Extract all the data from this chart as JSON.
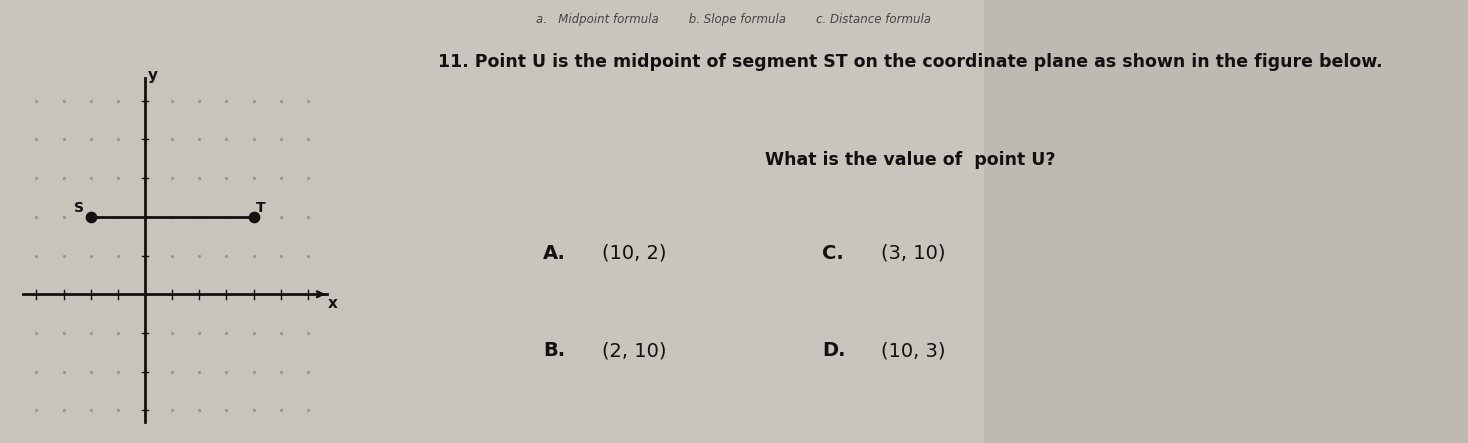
{
  "bg_left": "#c8c4bc",
  "bg_right": "#d4d0ca",
  "bg_right2": "#b8b4ae",
  "title_line1": "11. Point U is the midpoint of segment ST on the coordinate plane as shown in the figure below.",
  "title_line2": "What is the value of  point U?",
  "choices": [
    {
      "label": "A.",
      "value": "(10, 2)",
      "col": 0,
      "row": 0
    },
    {
      "label": "C.",
      "value": "(3, 10)",
      "col": 1,
      "row": 0
    },
    {
      "label": "B.",
      "value": "(2, 10)",
      "col": 0,
      "row": 1
    },
    {
      "label": "D.",
      "value": "(10, 3)",
      "col": 1,
      "row": 1
    }
  ],
  "grid_dot_color": "#999999",
  "axis_color": "#111111",
  "dot_color": "#111111",
  "S_point": [
    -2,
    2
  ],
  "T_point": [
    4,
    2
  ],
  "S_label": "S",
  "T_label": "T",
  "x_label": "x",
  "y_label": "y",
  "grid_xlim": [
    -4,
    6
  ],
  "grid_ylim": [
    -3,
    5
  ],
  "dot_size": 55,
  "text_color": "#111111",
  "header_text": "a.   Midpoint formula        b. Slope formula        c. Distance formula"
}
